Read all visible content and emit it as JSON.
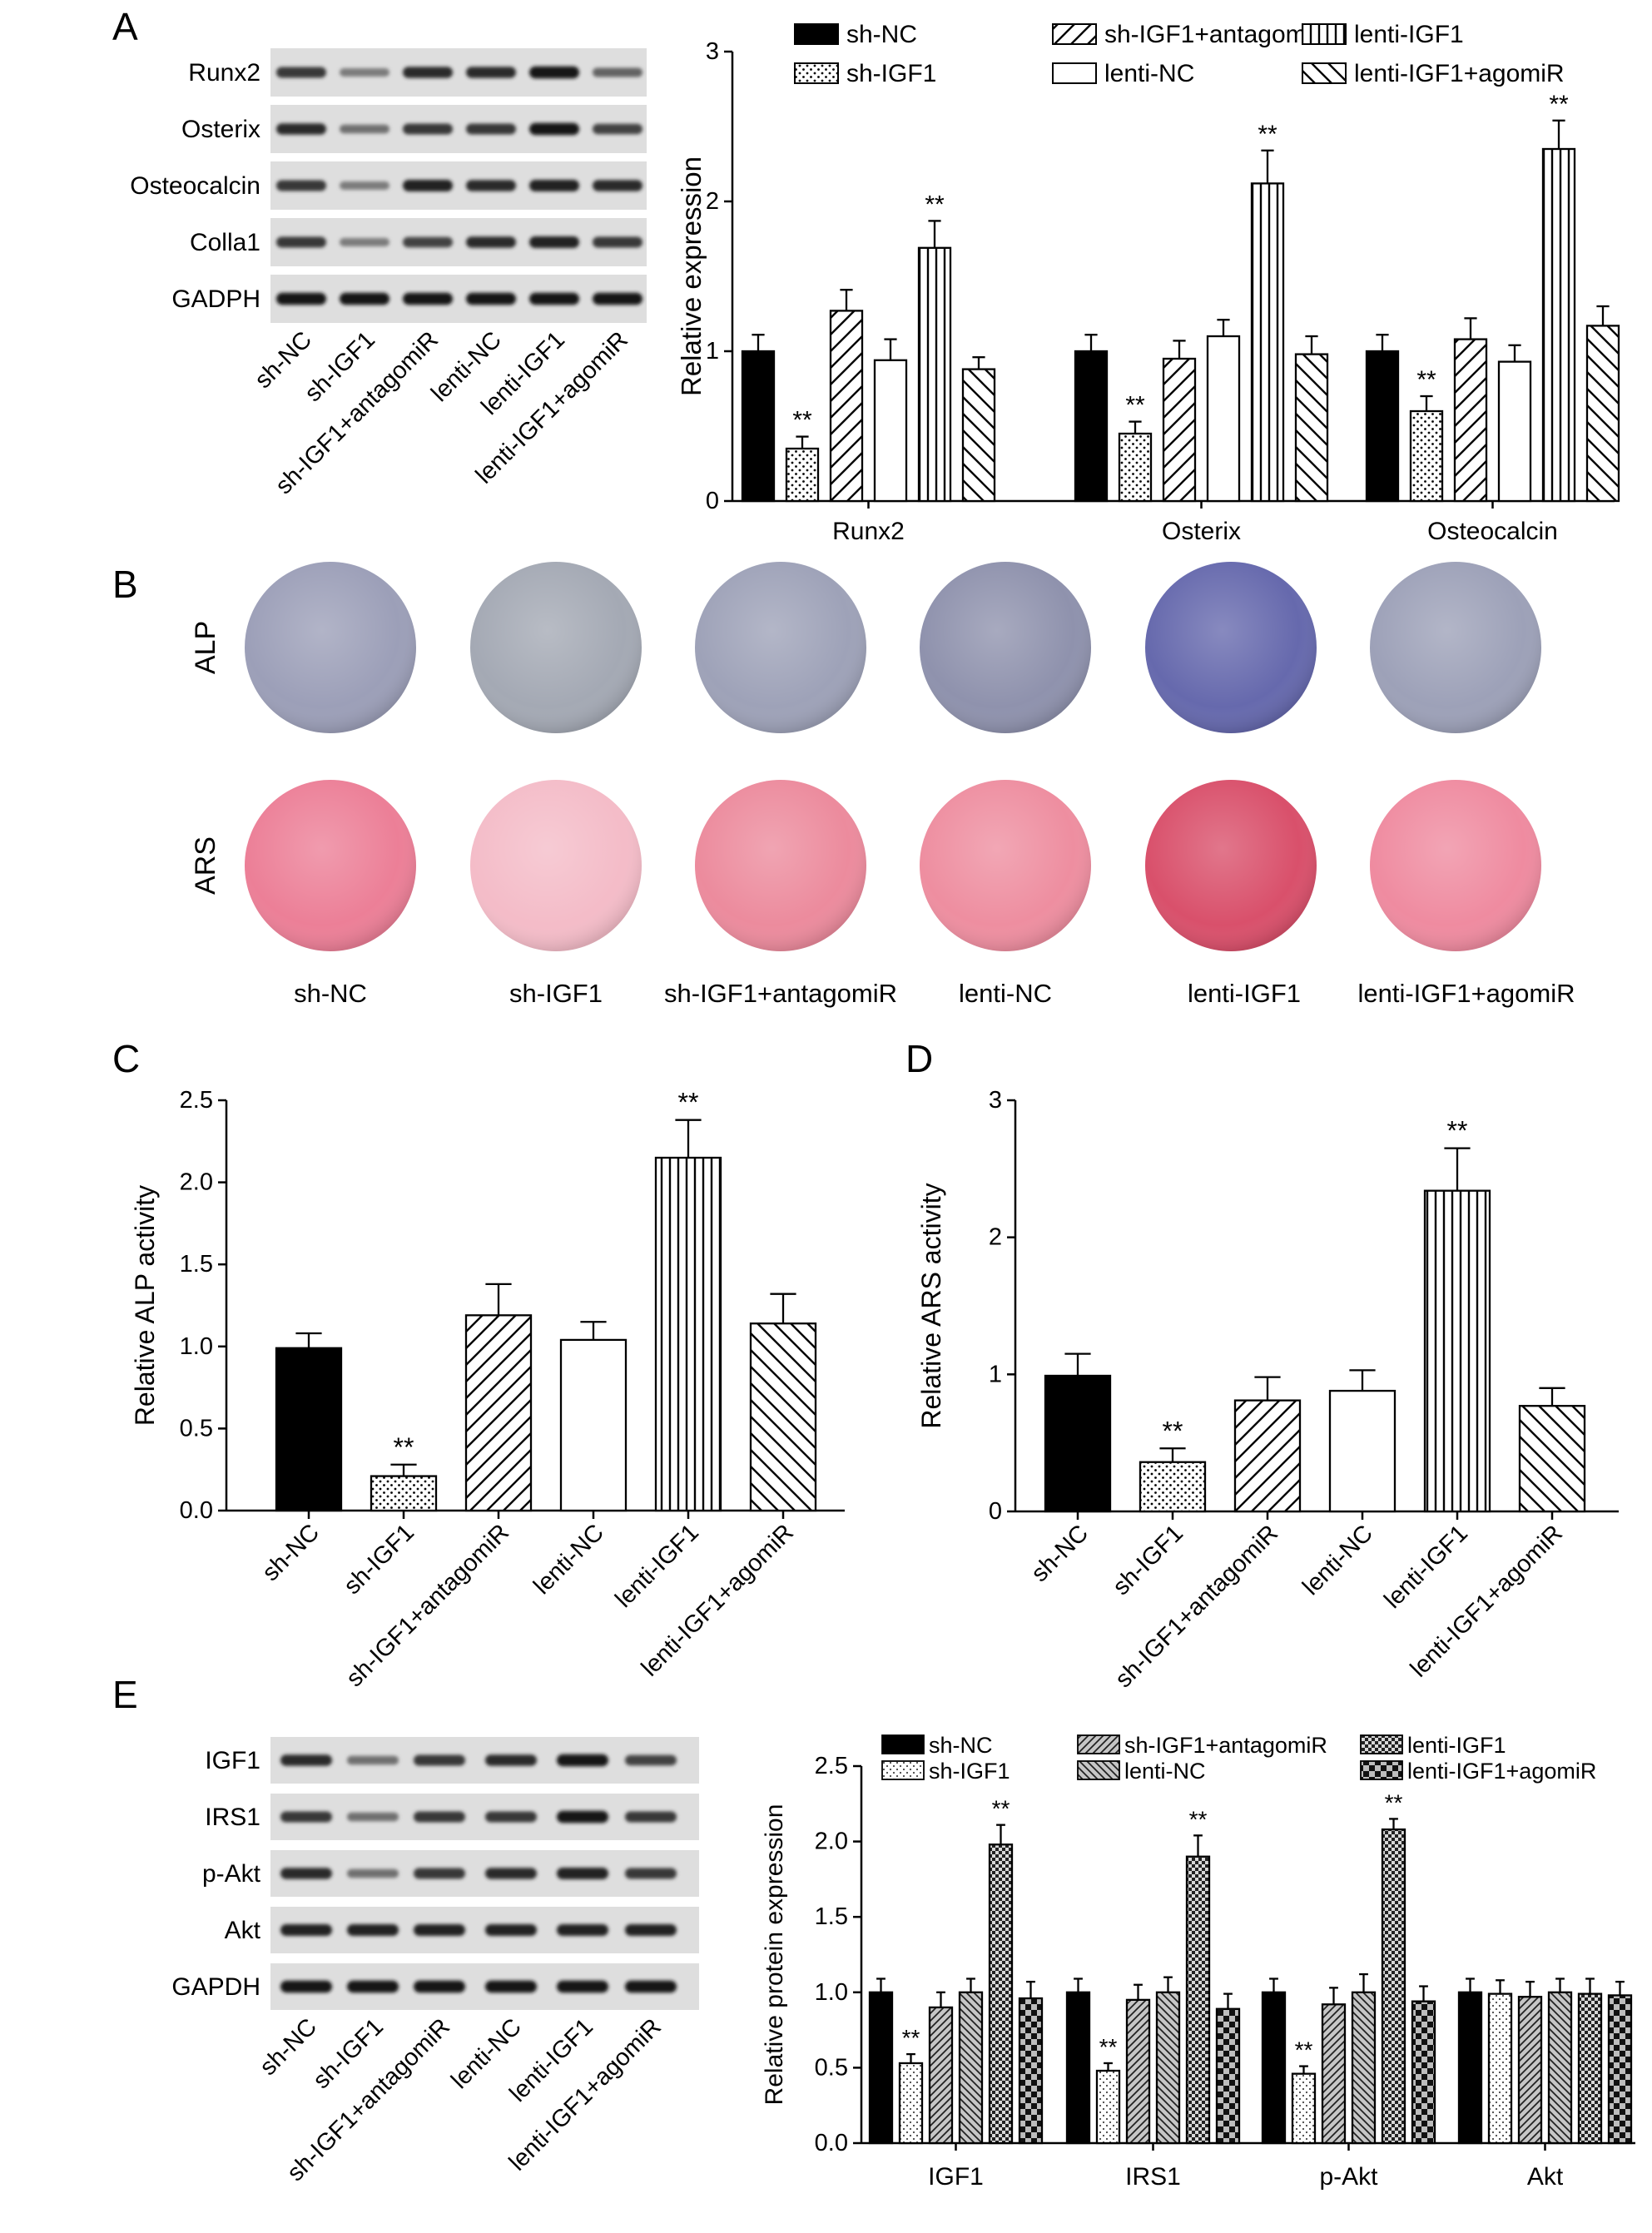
{
  "panels": {
    "A": "A",
    "B": "B",
    "C": "C",
    "D": "D",
    "E": "E"
  },
  "group_labels": [
    "sh-NC",
    "sh-IGF1",
    "sh-IGF1+antagomiR",
    "lenti-NC",
    "lenti-IGF1",
    "lenti-IGF1+agomiR"
  ],
  "blot_A": {
    "rows": [
      "Runx2",
      "Osterix",
      "Osteocalcin",
      "Colla1",
      "GADPH"
    ],
    "intensity": [
      [
        0.8,
        0.5,
        0.85,
        0.85,
        0.95,
        0.6
      ],
      [
        0.85,
        0.55,
        0.8,
        0.8,
        0.95,
        0.75
      ],
      [
        0.8,
        0.5,
        0.9,
        0.85,
        0.9,
        0.85
      ],
      [
        0.8,
        0.5,
        0.75,
        0.85,
        0.9,
        0.8
      ],
      [
        0.95,
        0.95,
        0.95,
        0.95,
        0.95,
        0.95
      ]
    ]
  },
  "blot_E": {
    "rows": [
      "IGF1",
      "IRS1",
      "p-Akt",
      "Akt",
      "GAPDH"
    ],
    "intensity": [
      [
        0.85,
        0.55,
        0.8,
        0.85,
        0.95,
        0.75
      ],
      [
        0.8,
        0.55,
        0.8,
        0.8,
        0.95,
        0.8
      ],
      [
        0.85,
        0.55,
        0.8,
        0.85,
        0.9,
        0.8
      ],
      [
        0.9,
        0.9,
        0.9,
        0.9,
        0.9,
        0.9
      ],
      [
        0.95,
        0.95,
        0.95,
        0.95,
        0.95,
        0.95
      ]
    ]
  },
  "stain_B": {
    "row_labels": [
      "ALP",
      "ARS"
    ],
    "alp_colors": [
      "#9c9fb8",
      "#a4a9b4",
      "#9ea2b8",
      "#8f92ad",
      "#6669ad",
      "#9da1b8"
    ],
    "ars_colors": [
      "#ec7f97",
      "#f4bcc8",
      "#ec8b9d",
      "#ee8ea0",
      "#d9506b",
      "#ef8ba0"
    ]
  },
  "chart_data": [
    {
      "id": "A",
      "type": "bar",
      "categories": [
        "Runx2",
        "Osterix",
        "Osteocalcin"
      ],
      "ylabel": "Relative expression",
      "ylim": [
        0,
        3
      ],
      "yticks": [
        "0",
        "1",
        "2",
        "3"
      ],
      "legend": "top",
      "series": [
        {
          "name": "sh-NC",
          "values": [
            1.0,
            1.0,
            1.0
          ],
          "err": [
            0.11,
            0.11,
            0.11
          ],
          "sig": [
            "",
            "",
            ""
          ],
          "pattern": "solid"
        },
        {
          "name": "sh-IGF1",
          "values": [
            0.35,
            0.45,
            0.6
          ],
          "err": [
            0.08,
            0.08,
            0.1
          ],
          "sig": [
            "**",
            "**",
            "**"
          ],
          "pattern": "dots"
        },
        {
          "name": "sh-IGF1+antagomiR",
          "values": [
            1.27,
            0.95,
            1.08
          ],
          "err": [
            0.14,
            0.12,
            0.14
          ],
          "sig": [
            "",
            "",
            ""
          ],
          "pattern": "diagfwd"
        },
        {
          "name": "lenti-NC",
          "values": [
            0.94,
            1.1,
            0.93
          ],
          "err": [
            0.14,
            0.11,
            0.11
          ],
          "sig": [
            "",
            "",
            ""
          ],
          "pattern": "white"
        },
        {
          "name": "lenti-IGF1",
          "values": [
            1.69,
            2.12,
            2.35
          ],
          "err": [
            0.18,
            0.22,
            0.19
          ],
          "sig": [
            "**",
            "**",
            "**"
          ],
          "pattern": "vert"
        },
        {
          "name": "lenti-IGF1+agomiR",
          "values": [
            0.88,
            0.98,
            1.17
          ],
          "err": [
            0.08,
            0.12,
            0.13
          ],
          "sig": [
            "",
            "",
            ""
          ],
          "pattern": "diagback"
        }
      ]
    },
    {
      "id": "C",
      "type": "bar",
      "categories": [
        "sh-NC",
        "sh-IGF1",
        "sh-IGF1+antagomiR",
        "lenti-NC",
        "lenti-IGF1",
        "lenti-IGF1+agomiR"
      ],
      "ylabel": "Relative ALP activity",
      "ylim": [
        0,
        2.5
      ],
      "yticks": [
        "0.0",
        "0.5",
        "1.0",
        "1.5",
        "2.0",
        "2.5"
      ],
      "values": [
        0.99,
        0.21,
        1.19,
        1.04,
        2.15,
        1.14
      ],
      "err": [
        0.09,
        0.07,
        0.19,
        0.11,
        0.23,
        0.18
      ],
      "sig": [
        "",
        "**",
        "",
        "",
        "**",
        ""
      ],
      "patterns": [
        "solid",
        "dots",
        "diagfwd",
        "white",
        "vert",
        "diagback"
      ]
    },
    {
      "id": "D",
      "type": "bar",
      "categories": [
        "sh-NC",
        "sh-IGF1",
        "sh-IGF1+antagomiR",
        "lenti-NC",
        "lenti-IGF1",
        "lenti-IGF1+agomiR"
      ],
      "ylabel": "Relative ARS activity",
      "ylim": [
        0,
        3
      ],
      "yticks": [
        "0",
        "1",
        "2",
        "3"
      ],
      "values": [
        0.99,
        0.36,
        0.81,
        0.88,
        2.34,
        0.77
      ],
      "err": [
        0.16,
        0.1,
        0.17,
        0.15,
        0.31,
        0.13
      ],
      "sig": [
        "",
        "**",
        "",
        "",
        "**",
        ""
      ],
      "patterns": [
        "solid",
        "dots",
        "diagfwd",
        "white",
        "vert",
        "diagback"
      ]
    },
    {
      "id": "E",
      "type": "bar",
      "categories": [
        "IGF1",
        "IRS1",
        "p-Akt",
        "Akt"
      ],
      "ylabel": "Relative protein expression",
      "ylim": [
        0,
        2.5
      ],
      "yticks": [
        "0.0",
        "0.5",
        "1.0",
        "1.5",
        "2.0",
        "2.5"
      ],
      "legend": "top",
      "series": [
        {
          "name": "sh-NC",
          "values": [
            1.0,
            1.0,
            1.0,
            1.0
          ],
          "err": [
            0.09,
            0.09,
            0.09,
            0.09
          ],
          "sig": [
            "",
            "",
            "",
            ""
          ],
          "pattern": "solid"
        },
        {
          "name": "sh-IGF1",
          "values": [
            0.53,
            0.48,
            0.46,
            0.99
          ],
          "err": [
            0.06,
            0.05,
            0.05,
            0.09
          ],
          "sig": [
            "**",
            "**",
            "**",
            ""
          ],
          "pattern": "dotsE"
        },
        {
          "name": "sh-IGF1+antagomiR",
          "values": [
            0.9,
            0.95,
            0.92,
            0.97
          ],
          "err": [
            0.1,
            0.1,
            0.11,
            0.1
          ],
          "sig": [
            "",
            "",
            "",
            ""
          ],
          "pattern": "grayfwd"
        },
        {
          "name": "lenti-NC",
          "values": [
            1.0,
            1.0,
            1.0,
            1.0
          ],
          "err": [
            0.09,
            0.1,
            0.12,
            0.09
          ],
          "sig": [
            "",
            "",
            "",
            ""
          ],
          "pattern": "grayback"
        },
        {
          "name": "lenti-IGF1",
          "values": [
            1.98,
            1.9,
            2.08,
            0.99
          ],
          "err": [
            0.13,
            0.14,
            0.07,
            0.1
          ],
          "sig": [
            "**",
            "**",
            "**",
            ""
          ],
          "pattern": "check"
        },
        {
          "name": "lenti-IGF1+agomiR",
          "values": [
            0.96,
            0.89,
            0.94,
            0.98
          ],
          "err": [
            0.11,
            0.1,
            0.1,
            0.09
          ],
          "sig": [
            "",
            "",
            "",
            ""
          ],
          "pattern": "checkB"
        }
      ]
    }
  ]
}
